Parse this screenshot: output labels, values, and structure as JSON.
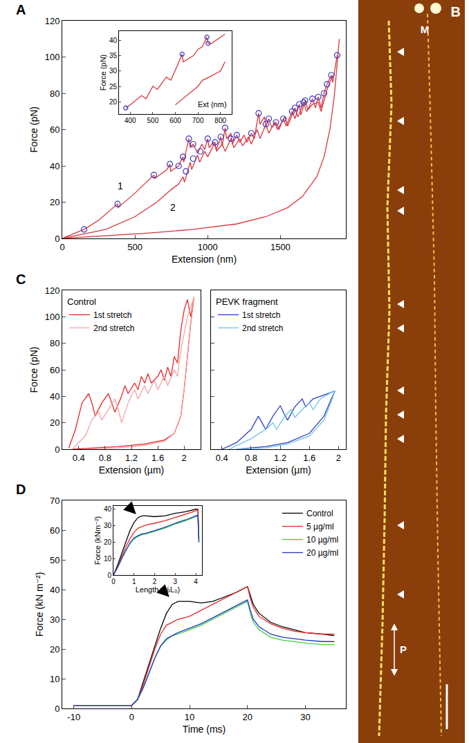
{
  "chart_data": [
    {
      "panel": "A",
      "type": "line",
      "x_label": "Extension (nm)",
      "y_label": "Force (pN)",
      "xlim": [
        0,
        1950
      ],
      "xticks": [
        0,
        500,
        1000,
        1500
      ],
      "ylim": [
        0,
        120
      ],
      "yticks": [
        0,
        20,
        40,
        60,
        80,
        100,
        120
      ],
      "grid": false,
      "annotations": [
        {
          "text": "1",
          "x": 400,
          "y": 29
        },
        {
          "text": "2",
          "x": 760,
          "y": 17
        }
      ],
      "series": [
        {
          "type": "line",
          "color": "#d9363e",
          "x": [
            0,
            150,
            250,
            380,
            385,
            500,
            630,
            635,
            720,
            740,
            745,
            800,
            830,
            835,
            870,
            880,
            900,
            930,
            960,
            980,
            1000,
            1010,
            1040,
            1060,
            1090,
            1100,
            1120,
            1130,
            1160,
            1170,
            1200,
            1220,
            1250,
            1270,
            1300,
            1320,
            1350,
            1360,
            1390,
            1400,
            1420,
            1440,
            1470,
            1490,
            1520,
            1540,
            1580,
            1600,
            1630,
            1640,
            1670,
            1690,
            1720,
            1740,
            1760,
            1780,
            1800,
            1820,
            1850,
            1860,
            1890
          ],
          "values": [
            0,
            5,
            10,
            19,
            17,
            25,
            35,
            33,
            38,
            41,
            37,
            40,
            45,
            42,
            55,
            50,
            52,
            47,
            52,
            49,
            55,
            50,
            53,
            49,
            56,
            51,
            61,
            55,
            58,
            52,
            57,
            53,
            57,
            53,
            58,
            55,
            69,
            63,
            67,
            62,
            66,
            61,
            64,
            60,
            66,
            62,
            70,
            66,
            74,
            68,
            76,
            71,
            77,
            72,
            78,
            72,
            80,
            85,
            90,
            86,
            101
          ]
        },
        {
          "type": "line",
          "color": "#d9363e",
          "x": [
            0,
            300,
            500,
            650,
            750,
            800,
            830,
            840,
            880,
            890,
            930,
            945,
            980,
            1000,
            1050,
            1060,
            1100,
            1120,
            1160,
            1180,
            1220,
            1240,
            1280,
            1300,
            1340,
            1360,
            1400,
            1420,
            1460,
            1480,
            1530,
            1550,
            1600,
            1620,
            1660,
            1680,
            1720,
            1760,
            1780,
            1820,
            1860
          ],
          "values": [
            0,
            5,
            12,
            20,
            27,
            30,
            34,
            31,
            42,
            38,
            46,
            42,
            48,
            45,
            53,
            48,
            52,
            48,
            55,
            50,
            55,
            51,
            56,
            52,
            60,
            55,
            63,
            58,
            64,
            60,
            67,
            62,
            72,
            67,
            75,
            70,
            74,
            75,
            70,
            82,
            90
          ]
        },
        {
          "type": "line",
          "color": "#d9363e",
          "x": [
            0,
            300,
            600,
            900,
            1200,
            1400,
            1550,
            1650,
            1750,
            1800,
            1840,
            1870,
            1890,
            1905
          ],
          "values": [
            0,
            1.5,
            3,
            5,
            8,
            12,
            17,
            23,
            34,
            45,
            60,
            78,
            95,
            110
          ]
        },
        {
          "type": "scatter",
          "marker": "circle-open",
          "color": "#3a3ac8",
          "x": [
            150,
            380,
            630,
            740,
            800,
            830,
            850,
            870,
            900,
            900,
            950,
            1000,
            1050,
            1090,
            1120,
            1160,
            1200,
            1300,
            1350,
            1400,
            1420,
            1470,
            1520,
            1580,
            1600,
            1630,
            1660,
            1670,
            1720,
            1760,
            1800,
            1820,
            1850,
            1890
          ],
          "values": [
            5,
            19,
            35,
            41,
            40,
            45,
            37,
            55,
            52,
            44,
            48,
            55,
            53,
            56,
            61,
            55,
            57,
            58,
            69,
            63,
            66,
            64,
            66,
            70,
            72,
            74,
            75,
            76,
            77,
            78,
            80,
            85,
            90,
            101
          ]
        }
      ]
    },
    {
      "type": "line",
      "x_label": "Ext (nm)",
      "y_label": "Force (pN)",
      "xlim": [
        350,
        850
      ],
      "xticks": [
        400,
        500,
        600,
        700,
        800
      ],
      "ylim": [
        16,
        43
      ],
      "yticks": [
        20,
        25,
        30,
        35,
        40
      ],
      "grid": false,
      "series": [
        {
          "type": "line",
          "color": "#d9363e",
          "x": [
            380,
            400,
            450,
            470,
            500,
            520,
            560,
            580,
            610,
            630,
            635,
            680,
            700,
            720,
            740,
            745,
            760,
            780,
            800,
            820
          ],
          "values": [
            18,
            19,
            22,
            21,
            25,
            24,
            28,
            27,
            32,
            35.5,
            33,
            35,
            37,
            38,
            41,
            39,
            39,
            40,
            41,
            42
          ]
        },
        {
          "type": "line",
          "color": "#d9363e",
          "x": [
            600,
            650,
            700,
            720,
            750,
            800,
            820
          ],
          "values": [
            19,
            22,
            25,
            27,
            28,
            30,
            33
          ]
        },
        {
          "type": "scatter",
          "marker": "circle-open",
          "color": "#3a3ac8",
          "x": [
            380,
            630,
            740,
            745
          ],
          "values": [
            18,
            35.5,
            41,
            39
          ]
        }
      ]
    },
    {
      "panel": "C",
      "type": "line",
      "title": "Control",
      "legend": "upper left",
      "x_label": "Extension (µm)",
      "y_label": "Force (pN)",
      "xlim": [
        0.15,
        2.25
      ],
      "xticks": [
        0.4,
        0.8,
        1.2,
        1.6,
        2.0
      ],
      "ylim": [
        0,
        120
      ],
      "yticks": [
        0,
        20,
        40,
        60,
        80,
        100,
        120
      ],
      "grid": false,
      "series": [
        {
          "name": "1st stretch",
          "color": "#e8282b",
          "x": [
            0.25,
            0.35,
            0.45,
            0.55,
            0.6,
            0.65,
            0.75,
            0.85,
            0.9,
            0.95,
            1.05,
            1.1,
            1.15,
            1.25,
            1.3,
            1.35,
            1.4,
            1.45,
            1.5,
            1.6,
            1.65,
            1.7,
            1.75,
            1.8,
            1.85,
            1.9,
            1.95,
            2.0,
            2.05,
            2.1,
            2.15,
            2.1,
            2.05,
            2.0,
            1.95,
            1.85,
            1.7,
            1.4,
            1.0,
            0.6,
            0.3
          ],
          "values": [
            1,
            15,
            35,
            42,
            35,
            25,
            35,
            42,
            35,
            28,
            40,
            48,
            42,
            50,
            45,
            55,
            50,
            57,
            50,
            55,
            60,
            52,
            62,
            55,
            70,
            65,
            90,
            105,
            113,
            100,
            115,
            95,
            70,
            45,
            25,
            12,
            7,
            4,
            2,
            1,
            0
          ]
        },
        {
          "name": "2nd stretch",
          "color": "#f2a3a3",
          "x": [
            0.3,
            0.5,
            0.6,
            0.7,
            0.75,
            0.85,
            0.95,
            1.0,
            1.05,
            1.15,
            1.25,
            1.3,
            1.4,
            1.45,
            1.55,
            1.6,
            1.7,
            1.75,
            1.85,
            1.9,
            1.95,
            2.05,
            2.15,
            2.1,
            2.05,
            2.0,
            1.95,
            1.85,
            1.7,
            1.4,
            1.0,
            0.5
          ],
          "values": [
            0,
            10,
            22,
            28,
            22,
            30,
            38,
            30,
            20,
            35,
            45,
            38,
            48,
            42,
            52,
            45,
            55,
            48,
            60,
            55,
            75,
            100,
            115,
            95,
            70,
            45,
            25,
            12,
            6,
            3,
            1,
            0
          ]
        }
      ]
    },
    {
      "type": "line",
      "title": "PEVK fragment",
      "legend": "upper left",
      "x_label": "Extension (µm)",
      "tick_labels": "x",
      "xlim": [
        0.25,
        2.1
      ],
      "xticks": [
        0.4,
        0.8,
        1.2,
        1.6,
        2.0
      ],
      "ylim": [
        0,
        120
      ],
      "yticks": [
        0,
        20,
        40,
        60,
        80,
        100,
        120
      ],
      "grid": false,
      "series": [
        {
          "name": "1st stretch",
          "color": "#2c3ec8",
          "x": [
            0.4,
            0.6,
            0.8,
            0.9,
            0.95,
            1.0,
            1.1,
            1.2,
            1.25,
            1.3,
            1.4,
            1.5,
            1.55,
            1.65,
            1.75,
            1.85,
            1.95,
            1.9,
            1.8,
            1.6,
            1.3,
            1.0,
            0.6
          ],
          "values": [
            0,
            5,
            15,
            25,
            20,
            15,
            25,
            33,
            27,
            22,
            32,
            38,
            32,
            38,
            40,
            42,
            44,
            38,
            25,
            12,
            5,
            2,
            0
          ]
        },
        {
          "name": "2nd stretch",
          "color": "#6ec2ee",
          "x": [
            0.5,
            0.8,
            1.0,
            1.1,
            1.15,
            1.25,
            1.35,
            1.4,
            1.5,
            1.6,
            1.65,
            1.75,
            1.9,
            1.95,
            1.9,
            1.8,
            1.6,
            1.3,
            1.0,
            0.6
          ],
          "values": [
            0,
            8,
            15,
            20,
            15,
            24,
            30,
            24,
            30,
            35,
            30,
            38,
            43,
            44,
            36,
            22,
            10,
            4,
            1,
            0
          ]
        }
      ]
    },
    {
      "panel": "D",
      "type": "line",
      "legend": "upper right",
      "x_label": "Time (ms)",
      "y_label": "Force (kN m⁻²)",
      "xlim": [
        -12,
        37
      ],
      "xticks": [
        -10,
        0,
        10,
        20,
        30
      ],
      "ylim": [
        0,
        70
      ],
      "yticks": [
        0,
        10,
        20,
        30,
        40,
        50,
        60,
        70
      ],
      "grid": false,
      "arrows": [
        {
          "x": 6.5,
          "y": 37.5
        }
      ],
      "x": [
        -10,
        0,
        1,
        2,
        3,
        4,
        5,
        6,
        7,
        8,
        10,
        12,
        14,
        16,
        18,
        20,
        20.5,
        21,
        22,
        24,
        26,
        28,
        30,
        33,
        35
      ],
      "series": [
        {
          "name": "Control",
          "color": "#000000",
          "values": [
            1,
            1,
            3,
            9,
            15,
            21,
            27,
            32,
            35,
            36,
            36,
            35.5,
            36,
            37.5,
            39,
            41,
            38,
            35,
            32,
            29,
            27.5,
            26.5,
            25.5,
            25,
            24.5
          ]
        },
        {
          "name": "5 µg/ml",
          "color": "#e8282b",
          "values": [
            1,
            1,
            3,
            8,
            14,
            20,
            25,
            28,
            29,
            30,
            31,
            33,
            35,
            37,
            39,
            41,
            37,
            34,
            31,
            28.5,
            27,
            26,
            25.5,
            25,
            25
          ]
        },
        {
          "name": "10 µg/ml",
          "color": "#3ecf3e",
          "values": [
            1,
            1,
            3,
            7,
            12,
            17,
            21,
            23,
            24.5,
            25,
            26.5,
            28,
            30,
            32,
            34,
            36,
            32,
            29,
            26.5,
            24,
            23,
            22.5,
            22,
            21.5,
            21.5
          ]
        },
        {
          "name": "20 µg/ml",
          "color": "#2233cc",
          "values": [
            1,
            1,
            3,
            7,
            12,
            17,
            21,
            23.5,
            24.5,
            25.5,
            27,
            28.5,
            30.5,
            32.5,
            34.5,
            36.5,
            33,
            30,
            27.5,
            25,
            24,
            23.5,
            23,
            22.5,
            22.5
          ]
        }
      ]
    },
    {
      "type": "line",
      "x_label": "Length (%L₀)",
      "y_label": "Force (kNm⁻²)",
      "xlim": [
        0,
        4.3
      ],
      "xticks": [
        0,
        1,
        2,
        3,
        4
      ],
      "ylim": [
        0,
        42
      ],
      "yticks": [
        0,
        10,
        20,
        30,
        40
      ],
      "grid": false,
      "arrows": [
        {
          "x": 1.1,
          "y": 37
        }
      ],
      "x": [
        0,
        0.2,
        0.4,
        0.6,
        0.8,
        1.0,
        1.2,
        1.4,
        1.6,
        2,
        2.5,
        3,
        3.5,
        4,
        4.1,
        4.15
      ],
      "series": [
        {
          "color": "#000000",
          "values": [
            0,
            6,
            13,
            20,
            27,
            32,
            35,
            36,
            36,
            35.5,
            36,
            37.5,
            38.5,
            40,
            40,
            22
          ]
        },
        {
          "color": "#e8282b",
          "values": [
            0,
            5,
            11,
            17,
            22,
            26,
            28.5,
            29.5,
            30.5,
            31.5,
            33,
            35,
            37,
            39,
            40,
            22
          ]
        },
        {
          "color": "#3ecf3e",
          "values": [
            0,
            4.5,
            10,
            15,
            19,
            22,
            23.5,
            24.5,
            25,
            26.5,
            28.5,
            31,
            33,
            35.5,
            36,
            20
          ]
        },
        {
          "color": "#2233cc",
          "values": [
            0,
            4.5,
            10,
            15,
            19.5,
            22.5,
            24,
            25,
            25.5,
            27,
            29,
            31.5,
            33.5,
            36,
            36.5,
            20
          ]
        }
      ]
    }
  ],
  "image": {
    "panel": "B",
    "labels": [
      "M",
      "P"
    ]
  }
}
